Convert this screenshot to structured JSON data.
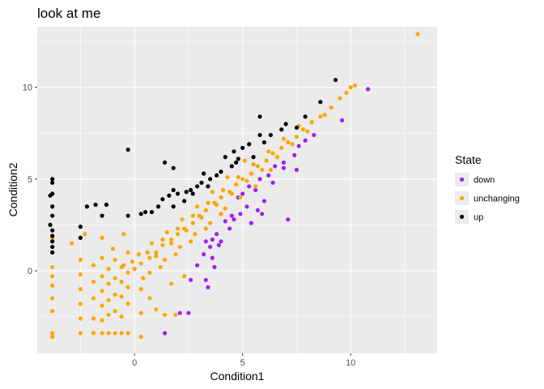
{
  "chart_data": {
    "type": "scatter",
    "title": "look at me",
    "xlabel": "Condition1",
    "ylabel": "Condition2",
    "xlim": [
      -4.5,
      14
    ],
    "ylim": [
      -4.5,
      13.3
    ],
    "x_ticks": [
      0,
      5,
      10
    ],
    "y_ticks": [
      0,
      5,
      10
    ],
    "grid": true,
    "legend": {
      "title": "State",
      "position": "right"
    },
    "series": [
      {
        "name": "down",
        "color": "#a020f0",
        "points": [
          [
            10.8,
            9.9
          ],
          [
            9.6,
            8.2
          ],
          [
            8.3,
            7.4
          ],
          [
            7.9,
            7.1
          ],
          [
            7.6,
            6.8
          ],
          [
            7.4,
            6.3
          ],
          [
            6.9,
            5.9
          ],
          [
            6.5,
            5.7
          ],
          [
            6.2,
            5.2
          ],
          [
            5.8,
            5.0
          ],
          [
            5.3,
            4.6
          ],
          [
            5.6,
            4.4
          ],
          [
            5.0,
            4.2
          ],
          [
            6.4,
            4.8
          ],
          [
            7.5,
            5.5
          ],
          [
            4.8,
            4.0
          ],
          [
            6.0,
            3.8
          ],
          [
            5.7,
            3.3
          ],
          [
            5.2,
            3.5
          ],
          [
            4.9,
            3.1
          ],
          [
            4.6,
            2.8
          ],
          [
            5.4,
            2.6
          ],
          [
            4.4,
            2.3
          ],
          [
            4.2,
            2.7
          ],
          [
            4.0,
            1.6
          ],
          [
            3.8,
            2.0
          ],
          [
            3.6,
            1.7
          ],
          [
            3.5,
            1.3
          ],
          [
            3.3,
            1.6
          ],
          [
            3.2,
            0.9
          ],
          [
            3.6,
            0.7
          ],
          [
            4.5,
            3.0
          ],
          [
            7.1,
            2.8
          ],
          [
            3.7,
            0.2
          ],
          [
            3.3,
            -0.5
          ],
          [
            2.9,
            0.3
          ],
          [
            2.6,
            -0.5
          ],
          [
            3.4,
            -0.9
          ],
          [
            2.5,
            -2.3
          ],
          [
            2.1,
            -2.3
          ],
          [
            1.4,
            -3.4
          ],
          [
            6.9,
            5.6
          ],
          [
            5.9,
            3.1
          ],
          [
            3.9,
            1.4
          ]
        ]
      },
      {
        "name": "unchanging",
        "color": "#ffa500",
        "points": [
          [
            13.1,
            12.9
          ],
          [
            10.2,
            10.1
          ],
          [
            10.0,
            10.0
          ],
          [
            9.8,
            9.7
          ],
          [
            9.5,
            9.4
          ],
          [
            9.1,
            8.9
          ],
          [
            8.6,
            8.4
          ],
          [
            8.2,
            8.1
          ],
          [
            7.8,
            7.7
          ],
          [
            7.5,
            7.3
          ],
          [
            7.1,
            7.0
          ],
          [
            6.8,
            6.7
          ],
          [
            6.4,
            6.4
          ],
          [
            6.1,
            6.0
          ],
          [
            5.7,
            5.7
          ],
          [
            5.4,
            5.3
          ],
          [
            5.0,
            5.0
          ],
          [
            4.7,
            4.7
          ],
          [
            4.4,
            4.3
          ],
          [
            4.0,
            4.0
          ],
          [
            3.7,
            3.7
          ],
          [
            3.3,
            3.3
          ],
          [
            3.0,
            3.0
          ],
          [
            2.7,
            2.6
          ],
          [
            2.3,
            2.3
          ],
          [
            2.0,
            2.0
          ],
          [
            1.7,
            1.7
          ],
          [
            1.3,
            1.4
          ],
          [
            1.0,
            1.0
          ],
          [
            0.7,
            0.7
          ],
          [
            0.3,
            0.4
          ],
          [
            0.0,
            0.1
          ],
          [
            8.8,
            8.5
          ],
          [
            8.0,
            7.6
          ],
          [
            7.3,
            6.9
          ],
          [
            6.6,
            6.2
          ],
          [
            5.9,
            5.5
          ],
          [
            5.2,
            4.9
          ],
          [
            4.5,
            4.2
          ],
          [
            3.8,
            3.6
          ],
          [
            3.1,
            2.9
          ],
          [
            2.4,
            2.2
          ],
          [
            1.7,
            1.5
          ],
          [
            1.0,
            0.8
          ],
          [
            7.6,
            7.9
          ],
          [
            6.9,
            7.2
          ],
          [
            6.2,
            6.5
          ],
          [
            5.5,
            5.8
          ],
          [
            4.8,
            5.1
          ],
          [
            4.1,
            4.4
          ],
          [
            3.4,
            3.7
          ],
          [
            2.7,
            3.0
          ],
          [
            2.0,
            2.3
          ],
          [
            1.3,
            1.7
          ],
          [
            0.6,
            1.0
          ],
          [
            6.3,
            5.5
          ],
          [
            5.6,
            4.6
          ],
          [
            4.9,
            4.0
          ],
          [
            4.2,
            3.4
          ],
          [
            3.5,
            2.6
          ],
          [
            2.8,
            2.0
          ],
          [
            2.1,
            1.3
          ],
          [
            1.4,
            0.6
          ],
          [
            0.7,
            -0.1
          ],
          [
            5.1,
            6.0
          ],
          [
            4.3,
            5.1
          ],
          [
            3.6,
            4.3
          ],
          [
            2.9,
            3.5
          ],
          [
            2.2,
            2.8
          ],
          [
            1.5,
            2.1
          ],
          [
            0.8,
            1.5
          ],
          [
            0.2,
            0.9
          ],
          [
            -0.5,
            0.3
          ],
          [
            -1.0,
            1.2
          ],
          [
            -0.5,
            2.0
          ],
          [
            -1.5,
            1.8
          ],
          [
            -2.3,
            2.0
          ],
          [
            -2.9,
            1.5
          ],
          [
            -3.8,
            1.8
          ],
          [
            -3.8,
            0.2
          ],
          [
            -3.8,
            -0.8
          ],
          [
            -3.8,
            -1.5
          ],
          [
            -3.8,
            -2.2
          ],
          [
            -3.8,
            -3.4
          ],
          [
            -3.8,
            -3.6
          ],
          [
            -2.5,
            -0.2
          ],
          [
            -2.5,
            -1.0
          ],
          [
            -2.5,
            -1.8
          ],
          [
            -2.5,
            -2.6
          ],
          [
            -2.5,
            -3.4
          ],
          [
            -1.9,
            -3.4
          ],
          [
            -1.9,
            -2.6
          ],
          [
            -1.9,
            -1.5
          ],
          [
            -1.9,
            -0.6
          ],
          [
            -1.9,
            0.3
          ],
          [
            -1.5,
            0.7
          ],
          [
            -1.5,
            -0.3
          ],
          [
            -1.5,
            -1.1
          ],
          [
            -1.5,
            -1.9
          ],
          [
            -1.5,
            -2.7
          ],
          [
            -1.5,
            -3.4
          ],
          [
            -1.2,
            0.1
          ],
          [
            -1.2,
            -0.7
          ],
          [
            -1.2,
            -1.6
          ],
          [
            -1.2,
            -2.4
          ],
          [
            -1.2,
            -3.4
          ],
          [
            -0.9,
            0.6
          ],
          [
            -0.9,
            -0.4
          ],
          [
            -0.9,
            -1.3
          ],
          [
            -0.9,
            -2.2
          ],
          [
            -0.9,
            -3.4
          ],
          [
            -0.6,
            0.2
          ],
          [
            -0.6,
            -0.6
          ],
          [
            -0.6,
            -1.4
          ],
          [
            -0.6,
            -2.5
          ],
          [
            -0.6,
            -3.4
          ],
          [
            -0.3,
            -0.1
          ],
          [
            -0.3,
            -0.9
          ],
          [
            -0.3,
            -1.8
          ],
          [
            -0.3,
            -3.4
          ],
          [
            0.3,
            -1.0
          ],
          [
            0.3,
            -2.3
          ],
          [
            0.3,
            -3.6
          ],
          [
            0.7,
            -1.5
          ],
          [
            1.0,
            -2.1
          ],
          [
            1.4,
            -2.4
          ],
          [
            1.9,
            -2.4
          ],
          [
            1.7,
            -0.7
          ],
          [
            2.3,
            -0.3
          ],
          [
            -3.8,
            -0.3
          ],
          [
            -2.5,
            0.6
          ],
          [
            -0.3,
            1.0
          ],
          [
            -0.1,
            0.5
          ],
          [
            0.4,
            -0.4
          ],
          [
            1.2,
            0.2
          ],
          [
            1.9,
            0.9
          ],
          [
            2.6,
            1.6
          ],
          [
            3.3,
            2.3
          ],
          [
            4.0,
            3.1
          ]
        ]
      },
      {
        "name": "up",
        "color": "#000000",
        "points": [
          [
            9.3,
            10.4
          ],
          [
            8.6,
            9.2
          ],
          [
            7.9,
            8.4
          ],
          [
            7.5,
            7.8
          ],
          [
            6.8,
            7.7
          ],
          [
            5.8,
            7.4
          ],
          [
            5.3,
            6.9
          ],
          [
            5.0,
            6.7
          ],
          [
            4.6,
            6.5
          ],
          [
            4.2,
            6.2
          ],
          [
            6.0,
            7.0
          ],
          [
            7.0,
            8.0
          ],
          [
            5.8,
            8.4
          ],
          [
            4.7,
            5.9
          ],
          [
            4.5,
            5.7
          ],
          [
            4.0,
            5.4
          ],
          [
            3.8,
            5.2
          ],
          [
            3.5,
            5.0
          ],
          [
            3.1,
            4.8
          ],
          [
            2.9,
            4.6
          ],
          [
            2.6,
            4.4
          ],
          [
            2.4,
            4.3
          ],
          [
            2.0,
            4.2
          ],
          [
            1.8,
            5.6
          ],
          [
            1.4,
            5.9
          ],
          [
            1.8,
            4.4
          ],
          [
            1.6,
            4.1
          ],
          [
            1.3,
            3.9
          ],
          [
            1.1,
            3.5
          ],
          [
            0.5,
            3.2
          ],
          [
            0.3,
            3.1
          ],
          [
            0.8,
            3.2
          ],
          [
            1.8,
            3.5
          ],
          [
            2.3,
            3.8
          ],
          [
            2.7,
            4.2
          ],
          [
            3.4,
            4.6
          ],
          [
            -0.3,
            6.6
          ],
          [
            -1.3,
            3.6
          ],
          [
            -1.5,
            3.0
          ],
          [
            -1.8,
            3.6
          ],
          [
            -2.2,
            3.5
          ],
          [
            -0.3,
            3.0
          ],
          [
            -2.5,
            2.4
          ],
          [
            -2.5,
            1.8
          ],
          [
            -3.8,
            5.0
          ],
          [
            -3.8,
            4.8
          ],
          [
            -3.8,
            4.2
          ],
          [
            -3.8,
            3.5
          ],
          [
            -3.8,
            3.0
          ],
          [
            -3.8,
            2.2
          ],
          [
            -3.8,
            1.9
          ],
          [
            -3.8,
            1.6
          ],
          [
            -3.8,
            1.3
          ],
          [
            -3.8,
            1.0
          ],
          [
            -3.9,
            4.1
          ],
          [
            -3.9,
            2.5
          ],
          [
            6.3,
            7.4
          ],
          [
            5.5,
            6.2
          ],
          [
            4.8,
            6.1
          ],
          [
            3.2,
            5.3
          ]
        ]
      }
    ]
  }
}
